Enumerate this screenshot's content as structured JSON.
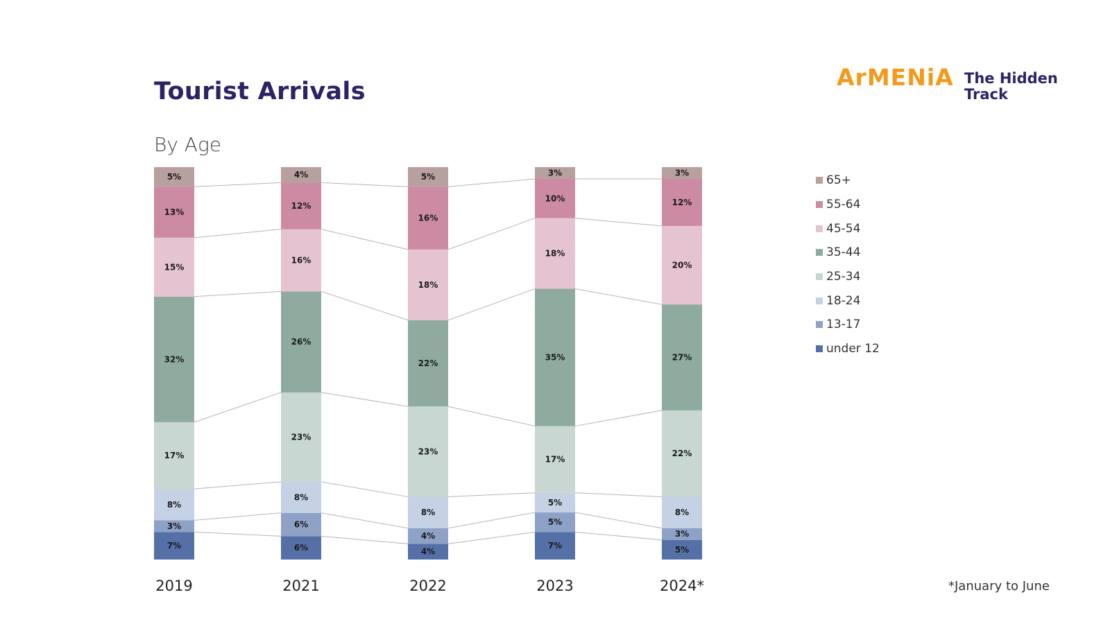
{
  "header": {
    "title": "Tourist Arrivals",
    "subtitle": "By Age"
  },
  "logo": {
    "brand": "ArMENiA",
    "tagline_line1": "The Hidden",
    "tagline_line2": "Track",
    "brand_color": "#f39a1c",
    "tagline_color": "#2e2266"
  },
  "footnote": "*January to June",
  "chart_data": {
    "type": "bar",
    "stacked": true,
    "title": "Tourist Arrivals",
    "subtitle": "By Age",
    "xlabel": "",
    "ylabel": "",
    "unit": "%",
    "categories": [
      "2019",
      "2021",
      "2022",
      "2023",
      "2024*"
    ],
    "legend_position": "right",
    "connector_lines": true,
    "series": [
      {
        "name": "under 12",
        "color": "#5470a6",
        "values": [
          7,
          6,
          4,
          7,
          5
        ]
      },
      {
        "name": "13-17",
        "color": "#8ea1c6",
        "values": [
          3,
          6,
          4,
          5,
          3
        ]
      },
      {
        "name": "18-24",
        "color": "#c5d1e4",
        "values": [
          8,
          8,
          8,
          5,
          8
        ]
      },
      {
        "name": "25-34",
        "color": "#c8d7d1",
        "values": [
          17,
          23,
          23,
          17,
          22
        ]
      },
      {
        "name": "35-44",
        "color": "#8fab9f",
        "values": [
          32,
          26,
          22,
          35,
          27
        ]
      },
      {
        "name": "45-54",
        "color": "#e6c3d1",
        "values": [
          15,
          16,
          18,
          18,
          20
        ]
      },
      {
        "name": "55-64",
        "color": "#cc8aa3",
        "values": [
          13,
          12,
          16,
          10,
          12
        ]
      },
      {
        "name": "65+",
        "color": "#b8a09f",
        "values": [
          5,
          4,
          5,
          3,
          3
        ]
      }
    ],
    "legend_order": [
      "65+",
      "55-64",
      "45-54",
      "35-44",
      "25-34",
      "18-24",
      "13-17",
      "under 12"
    ]
  }
}
